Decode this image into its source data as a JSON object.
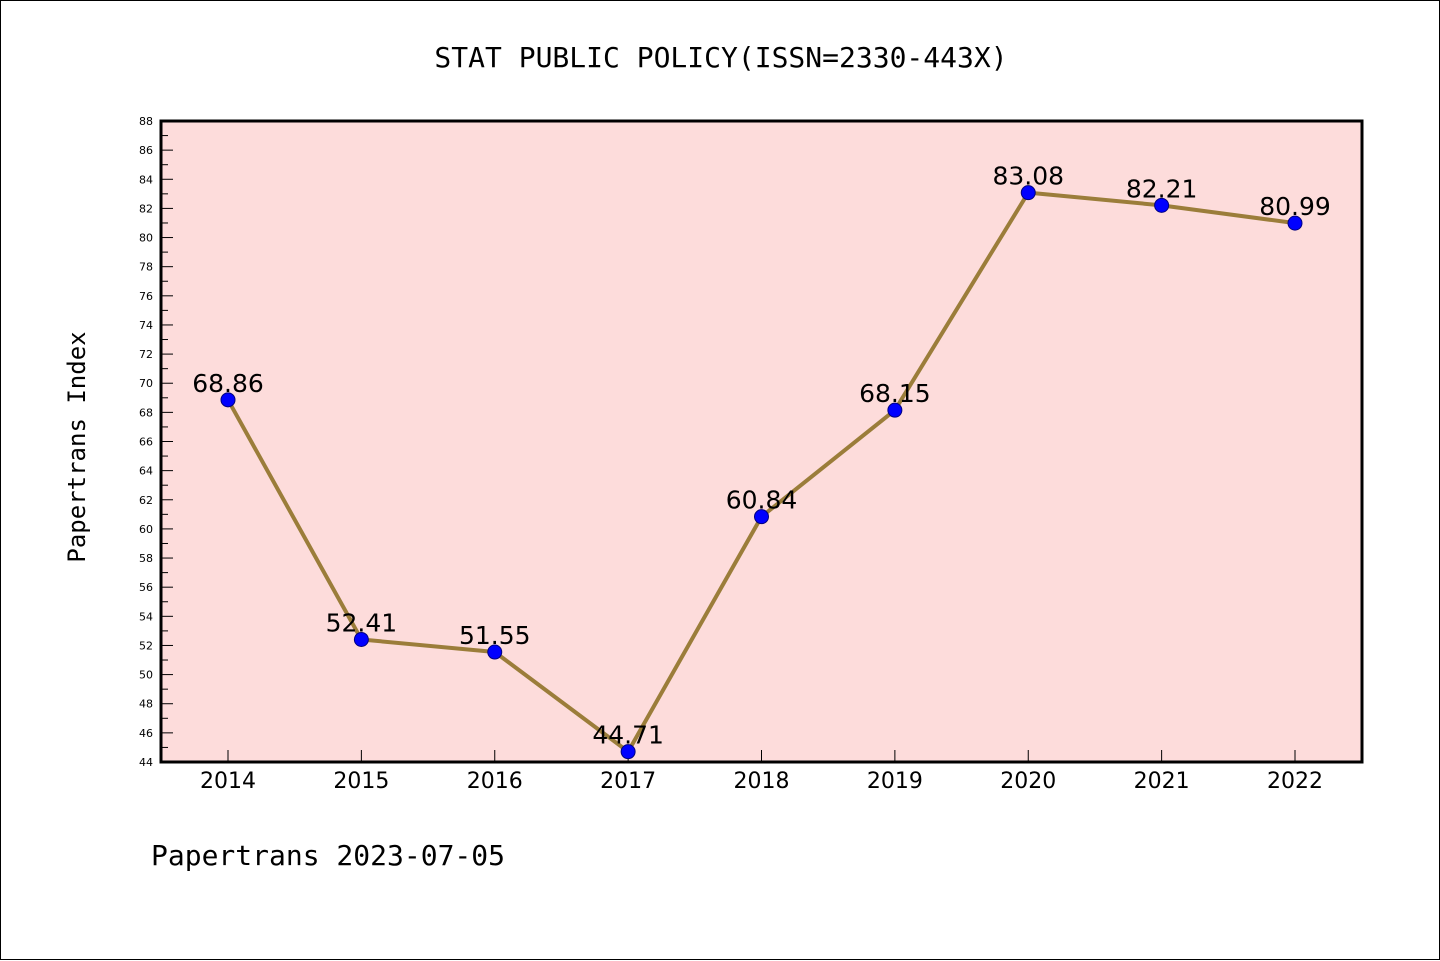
{
  "chart_data": {
    "type": "line",
    "title": "STAT PUBLIC POLICY(ISSN=2330-443X)",
    "xlabel": "",
    "ylabel": "Papertrans Index",
    "footer": "Papertrans 2023-07-05",
    "categories": [
      "2014",
      "2015",
      "2016",
      "2017",
      "2018",
      "2019",
      "2020",
      "2021",
      "2022"
    ],
    "series": [
      {
        "values": [
          68.86,
          52.41,
          51.55,
          44.71,
          60.84,
          68.15,
          83.08,
          82.21,
          80.99
        ],
        "labels": [
          "68.86",
          "52.41",
          "51.55",
          "44.71",
          "60.84",
          "68.15",
          "83.08",
          "82.21",
          "80.99"
        ]
      }
    ],
    "ylim": [
      44,
      88
    ],
    "ytick_step": 2,
    "grid": false,
    "colors": {
      "plot_background": "#fddcdb",
      "line": "#9b7d3a",
      "marker_fill": "#0000ff",
      "marker_edge": "#000080",
      "axes": "#000000"
    }
  }
}
